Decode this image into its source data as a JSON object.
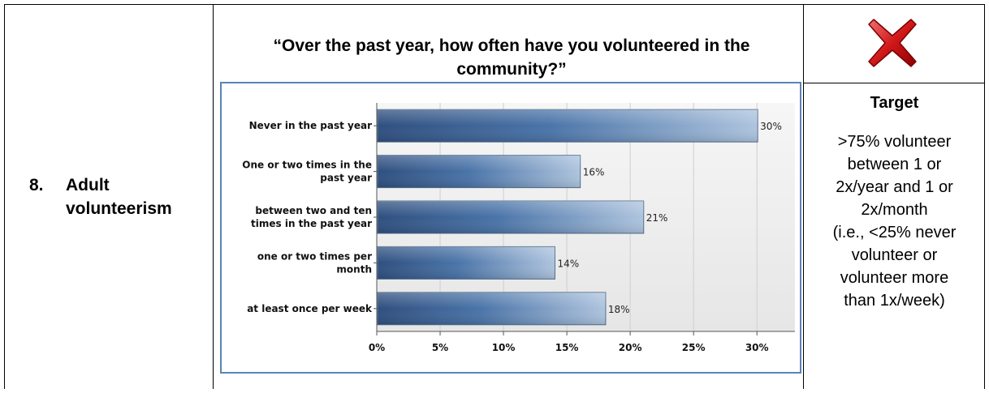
{
  "row": {
    "number": "8.",
    "label": "Adult\nvolunteerism"
  },
  "question": "“Over the past year, how often have you volunteered in the community?”",
  "status_icon": "red-x-icon",
  "target": {
    "title": "Target",
    "text": ">75% volunteer\nbetween 1 or\n2x/year and 1 or\n2x/month\n(i.e., <25% never\nvolunteer or\nvolunteer more\nthan 1x/week)"
  },
  "chart_data": {
    "type": "bar",
    "orientation": "horizontal",
    "categories": [
      "Never in the past year",
      "One or two times in the past year",
      "between two and ten times in the past year",
      "one or two times per month",
      "at least once per week"
    ],
    "category_lines": [
      [
        "Never in the past year"
      ],
      [
        "One or two times in the",
        "past year"
      ],
      [
        "between two and ten",
        "times in the past year"
      ],
      [
        "one or two times per",
        "month"
      ],
      [
        "at least once per week"
      ]
    ],
    "values": [
      30,
      16,
      21,
      14,
      18
    ],
    "value_labels": [
      "30%",
      "16%",
      "21%",
      "14%",
      "18%"
    ],
    "xlim": [
      0,
      33
    ],
    "xticks": [
      0,
      5,
      10,
      15,
      20,
      25,
      30
    ],
    "xtick_labels": [
      "0%",
      "5%",
      "10%",
      "15%",
      "20%",
      "25%",
      "30%"
    ],
    "grid": true,
    "colors": {
      "bar_dark": "#2f4f7f",
      "bar_mid": "#4a74a8",
      "bar_light": "#aec4de",
      "border": "#5a84b6"
    }
  }
}
